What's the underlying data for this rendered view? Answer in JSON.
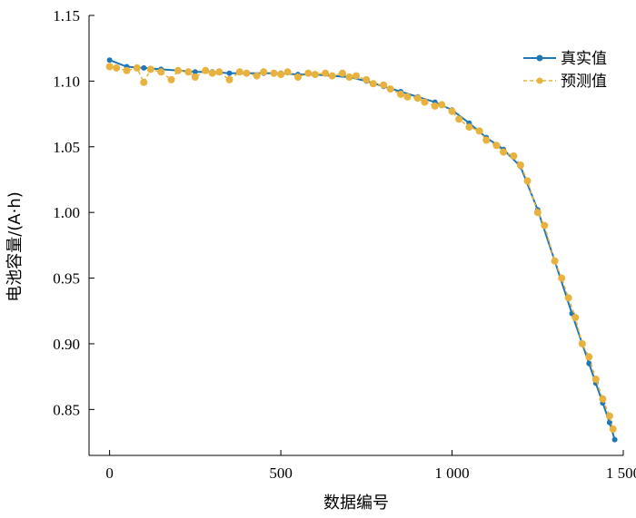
{
  "chart_data": {
    "type": "scatter",
    "xlabel": "数据编号",
    "ylabel": "电池容量/(A·h)",
    "xlim": [
      -60,
      1500
    ],
    "ylim": [
      0.815,
      1.15
    ],
    "x_ticks": [
      0,
      500,
      1000,
      1500
    ],
    "x_tick_labels": [
      "0",
      "500",
      "1 000",
      "1 500"
    ],
    "y_ticks": [
      0.85,
      0.9,
      0.95,
      1.0,
      1.05,
      1.1,
      1.15
    ],
    "y_tick_labels": [
      "0.85",
      "0.90",
      "0.95",
      "1.00",
      "1.05",
      "1.10",
      "1.15"
    ],
    "grid": false,
    "legend_position": "top-right",
    "series": [
      {
        "name": "真实值",
        "color": "#1f77b4",
        "style": "solid-line-with-markers",
        "x": [
          0,
          50,
          100,
          150,
          200,
          250,
          300,
          350,
          400,
          450,
          500,
          550,
          600,
          650,
          700,
          750,
          800,
          850,
          900,
          950,
          1000,
          1050,
          1100,
          1150,
          1200,
          1250,
          1300,
          1350,
          1380,
          1400,
          1420,
          1440,
          1460,
          1475
        ],
        "values": [
          1.116,
          1.111,
          1.11,
          1.109,
          1.108,
          1.107,
          1.107,
          1.106,
          1.106,
          1.106,
          1.106,
          1.105,
          1.105,
          1.104,
          1.103,
          1.1,
          1.096,
          1.092,
          1.088,
          1.084,
          1.078,
          1.068,
          1.057,
          1.048,
          1.035,
          1.002,
          0.963,
          0.923,
          0.9,
          0.885,
          0.87,
          0.855,
          0.84,
          0.827
        ]
      },
      {
        "name": "预测值",
        "color": "#e8b23e",
        "style": "dashed-line-with-markers",
        "x": [
          0,
          20,
          50,
          80,
          100,
          120,
          150,
          180,
          200,
          230,
          250,
          280,
          300,
          320,
          350,
          380,
          400,
          430,
          450,
          480,
          500,
          520,
          550,
          580,
          600,
          630,
          650,
          680,
          700,
          720,
          750,
          770,
          800,
          820,
          850,
          870,
          900,
          920,
          950,
          970,
          1000,
          1020,
          1050,
          1080,
          1100,
          1130,
          1150,
          1180,
          1200,
          1220,
          1250,
          1270,
          1300,
          1320,
          1340,
          1360,
          1380,
          1400,
          1420,
          1440,
          1460,
          1470
        ],
        "values": [
          1.111,
          1.11,
          1.108,
          1.11,
          1.099,
          1.109,
          1.107,
          1.101,
          1.108,
          1.107,
          1.103,
          1.108,
          1.106,
          1.107,
          1.101,
          1.107,
          1.106,
          1.104,
          1.107,
          1.106,
          1.105,
          1.107,
          1.103,
          1.106,
          1.105,
          1.106,
          1.104,
          1.106,
          1.103,
          1.104,
          1.101,
          1.098,
          1.097,
          1.094,
          1.09,
          1.088,
          1.087,
          1.084,
          1.081,
          1.082,
          1.077,
          1.071,
          1.065,
          1.062,
          1.055,
          1.051,
          1.046,
          1.043,
          1.036,
          1.024,
          1.0,
          0.99,
          0.963,
          0.95,
          0.935,
          0.92,
          0.9,
          0.89,
          0.873,
          0.858,
          0.845,
          0.835
        ]
      }
    ]
  }
}
